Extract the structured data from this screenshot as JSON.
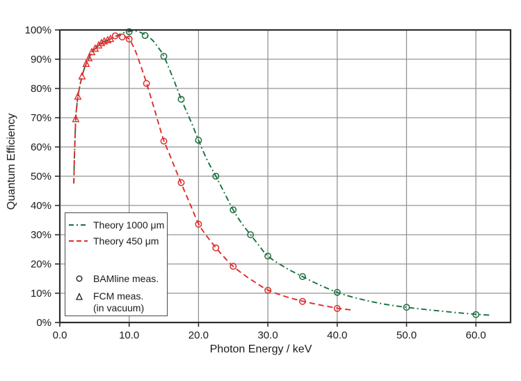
{
  "chart_data": {
    "type": "line",
    "title": "",
    "xlabel": "Photon Energy / keV",
    "ylabel": "Quantum Efficiency",
    "xlim": [
      0,
      65
    ],
    "ylim": [
      0,
      100
    ],
    "x_ticks": [
      0,
      10,
      20,
      30,
      40,
      50,
      60
    ],
    "x_tick_labels": [
      "0.0",
      "10.0",
      "20.0",
      "30.0",
      "40.0",
      "50.0",
      "60.0"
    ],
    "y_ticks": [
      0,
      10,
      20,
      30,
      40,
      50,
      60,
      70,
      80,
      90,
      100
    ],
    "y_tick_labels": [
      "0%",
      "10%",
      "20%",
      "30%",
      "40%",
      "50%",
      "60%",
      "70%",
      "80%",
      "90%",
      "100%"
    ],
    "grid": true,
    "legend_position": "left-middle",
    "colors": {
      "theory_1000": "#1a6f3e",
      "theory_450": "#dd2c2c",
      "grid": "#939393",
      "frame": "#2e2e2e",
      "text": "#1a1a1a",
      "black_marker": "#1a1a1a"
    },
    "series": [
      {
        "name": "Theory 1000 μm",
        "kind": "line",
        "dash": "dashdot",
        "color_key": "theory_1000",
        "points": [
          [
            2.02,
            47.5
          ],
          [
            2.1,
            56
          ],
          [
            2.3,
            69.5
          ],
          [
            2.45,
            74
          ],
          [
            2.6,
            77.2
          ],
          [
            2.9,
            81
          ],
          [
            3.2,
            84.1
          ],
          [
            3.5,
            86.6
          ],
          [
            3.8,
            88.4
          ],
          [
            4.2,
            90.3
          ],
          [
            4.6,
            92.4
          ],
          [
            5.1,
            93.6
          ],
          [
            5.6,
            94.7
          ],
          [
            6.0,
            95.5
          ],
          [
            6.4,
            96.1
          ],
          [
            6.9,
            96.5
          ],
          [
            7.3,
            96.9
          ],
          [
            8.0,
            97.7
          ],
          [
            9.0,
            98.9
          ],
          [
            10.0,
            99.5
          ],
          [
            10.8,
            99.7
          ],
          [
            11.6,
            99.2
          ],
          [
            12.5,
            98.1
          ],
          [
            13.4,
            96.4
          ],
          [
            14.2,
            94.0
          ],
          [
            15.0,
            91.0
          ],
          [
            16.2,
            84.3
          ],
          [
            17.5,
            76.4
          ],
          [
            19.0,
            68.2
          ],
          [
            20.0,
            62.3
          ],
          [
            21.2,
            55.8
          ],
          [
            22.5,
            50.0
          ],
          [
            23.8,
            44.0
          ],
          [
            25.0,
            38.5
          ],
          [
            26.2,
            34.0
          ],
          [
            27.5,
            30.0
          ],
          [
            28.7,
            26.4
          ],
          [
            30.0,
            22.7
          ],
          [
            32.5,
            18.8
          ],
          [
            35.0,
            15.7
          ],
          [
            37.5,
            12.8
          ],
          [
            40.0,
            10.3
          ],
          [
            42.5,
            8.5
          ],
          [
            45.0,
            7.1
          ],
          [
            47.5,
            6.0
          ],
          [
            50.0,
            5.2
          ],
          [
            52.5,
            4.5
          ],
          [
            55.0,
            3.9
          ],
          [
            57.5,
            3.3
          ],
          [
            60.0,
            2.8
          ],
          [
            62.0,
            2.5
          ]
        ]
      },
      {
        "name": "Theory 450 μm",
        "kind": "line",
        "dash": "dashed",
        "color_key": "theory_450",
        "points": [
          [
            2.02,
            47.5
          ],
          [
            2.1,
            56
          ],
          [
            2.3,
            69.5
          ],
          [
            2.45,
            74
          ],
          [
            2.6,
            77.2
          ],
          [
            2.9,
            81
          ],
          [
            3.2,
            84.1
          ],
          [
            3.5,
            86.6
          ],
          [
            3.8,
            88.4
          ],
          [
            4.2,
            90.3
          ],
          [
            4.6,
            92.4
          ],
          [
            5.1,
            93.6
          ],
          [
            5.6,
            94.7
          ],
          [
            6.0,
            95.5
          ],
          [
            6.4,
            96.1
          ],
          [
            6.9,
            96.5
          ],
          [
            7.3,
            96.9
          ],
          [
            8.0,
            97.9
          ],
          [
            8.6,
            98.1
          ],
          [
            9.2,
            97.9
          ],
          [
            10.0,
            96.9
          ],
          [
            10.5,
            94.8
          ],
          [
            11.0,
            92.2
          ],
          [
            11.5,
            88.9
          ],
          [
            12.0,
            85.5
          ],
          [
            12.5,
            81.9
          ],
          [
            13.5,
            74.0
          ],
          [
            14.3,
            67.5
          ],
          [
            15.0,
            62.2
          ],
          [
            16.0,
            56.4
          ],
          [
            17.5,
            47.6
          ],
          [
            18.7,
            41.0
          ],
          [
            20.0,
            33.8
          ],
          [
            21.2,
            29.5
          ],
          [
            22.5,
            25.6
          ],
          [
            23.7,
            22.3
          ],
          [
            25.0,
            19.2
          ],
          [
            26.5,
            16.4
          ],
          [
            28.0,
            14.0
          ],
          [
            30.0,
            11.1
          ],
          [
            32.5,
            8.9
          ],
          [
            35.0,
            7.3
          ],
          [
            37.5,
            6.0
          ],
          [
            40.0,
            4.9
          ],
          [
            42.0,
            4.3
          ]
        ]
      },
      {
        "name": "BAMline meas. (1000 μm)",
        "kind": "scatter",
        "marker": "circle",
        "color_key": "theory_1000",
        "points": [
          [
            10.0,
            99.4
          ],
          [
            12.3,
            98.1
          ],
          [
            15.0,
            91.0
          ],
          [
            17.5,
            76.3
          ],
          [
            20.0,
            62.3
          ],
          [
            22.5,
            50.0
          ],
          [
            25.0,
            38.5
          ],
          [
            27.5,
            30.0
          ],
          [
            30.0,
            22.7
          ],
          [
            35.0,
            15.7
          ],
          [
            40.0,
            10.3
          ],
          [
            50.0,
            5.2
          ],
          [
            60.0,
            2.7
          ]
        ]
      },
      {
        "name": "BAMline meas. (450 μm)",
        "kind": "scatter",
        "marker": "circle",
        "color_key": "theory_450",
        "points": [
          [
            8.0,
            98.0
          ],
          [
            9.0,
            97.6
          ],
          [
            10.0,
            96.9
          ],
          [
            12.5,
            81.7
          ],
          [
            15.0,
            62.0
          ],
          [
            17.5,
            47.8
          ],
          [
            20.0,
            33.6
          ],
          [
            22.5,
            25.5
          ],
          [
            25.0,
            19.2
          ],
          [
            30.0,
            11.0
          ],
          [
            35.0,
            7.2
          ],
          [
            40.0,
            4.8
          ]
        ]
      },
      {
        "name": "FCM meas. (in vacuum)",
        "kind": "scatter",
        "marker": "triangle",
        "color_key": "theory_450",
        "points": [
          [
            2.3,
            69.5
          ],
          [
            2.6,
            77.2
          ],
          [
            3.2,
            84.1
          ],
          [
            3.8,
            88.4
          ],
          [
            4.2,
            90.3
          ],
          [
            4.6,
            92.4
          ],
          [
            5.1,
            93.6
          ],
          [
            5.6,
            94.7
          ],
          [
            6.0,
            95.5
          ],
          [
            6.4,
            96.1
          ],
          [
            6.9,
            96.5
          ],
          [
            7.3,
            96.9
          ]
        ]
      }
    ],
    "legend": {
      "items": [
        {
          "label": "Theory 1000 μm",
          "swatch": "line-dashdot",
          "color_key": "theory_1000"
        },
        {
          "label": "Theory 450 μm",
          "swatch": "line-dashed",
          "color_key": "theory_450"
        },
        {
          "label": "BAMline meas.",
          "swatch": "marker-circle",
          "color_key": "black_marker"
        },
        {
          "label": "FCM meas.",
          "label2": "(in vacuum)",
          "swatch": "marker-triangle",
          "color_key": "black_marker"
        }
      ]
    }
  }
}
